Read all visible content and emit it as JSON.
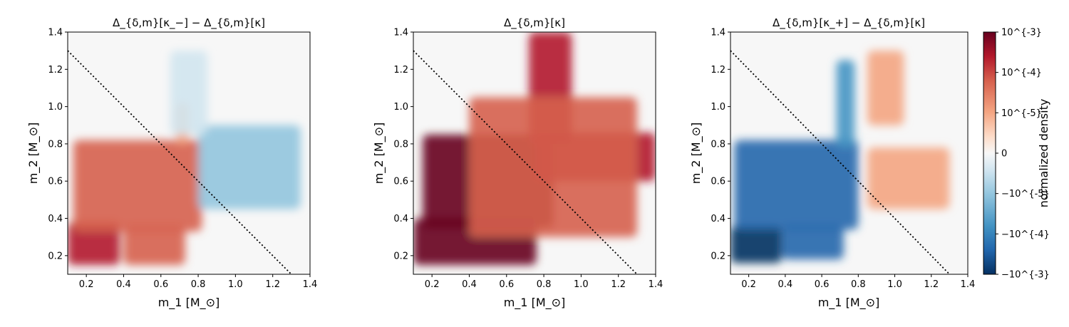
{
  "chart_data": [
    {
      "type": "heatmap",
      "title": "Δ_{δ,m}[κ_−] − Δ_{δ,m}[κ]",
      "xlabel": "m_1 [M_⊙]",
      "ylabel": "m_2 [M_⊙]",
      "xlim": [
        0.1,
        1.4
      ],
      "ylim": [
        0.1,
        1.4
      ],
      "xticks": [
        "0.2",
        "0.4",
        "0.6",
        "0.8",
        "1.0",
        "1.2",
        "1.4"
      ],
      "yticks": [
        "0.2",
        "0.4",
        "0.6",
        "0.8",
        "1.0",
        "1.2",
        "1.4"
      ],
      "reference_line": {
        "style": "dotted",
        "from": [
          0.1,
          1.3
        ],
        "to": [
          1.3,
          0.1
        ]
      },
      "regions": [
        {
          "x": [
            0.1,
            0.38
          ],
          "y": [
            0.15,
            0.38
          ],
          "sign": "positive",
          "level": 0.85
        },
        {
          "x": [
            0.4,
            0.73
          ],
          "y": [
            0.15,
            0.36
          ],
          "sign": "positive",
          "level": 0.6
        },
        {
          "x": [
            0.13,
            0.82
          ],
          "y": [
            0.33,
            0.82
          ],
          "sign": "positive",
          "level": 0.6
        },
        {
          "x": [
            0.68,
            0.75
          ],
          "y": [
            0.8,
            1.02
          ],
          "sign": "positive",
          "level": 0.3
        },
        {
          "x": [
            0.8,
            1.35
          ],
          "y": [
            0.45,
            0.9
          ],
          "sign": "negative",
          "level": 0.2
        },
        {
          "x": [
            0.65,
            0.85
          ],
          "y": [
            0.85,
            1.3
          ],
          "sign": "negative",
          "level": 0.12
        }
      ]
    },
    {
      "type": "heatmap",
      "title": "Δ_{δ,m}[κ]",
      "xlabel": "m_1 [M_⊙]",
      "ylabel": "m_2 [M_⊙]",
      "xlim": [
        0.1,
        1.4
      ],
      "ylim": [
        0.1,
        1.4
      ],
      "xticks": [
        "0.2",
        "0.4",
        "0.6",
        "0.8",
        "1.0",
        "1.2",
        "1.4"
      ],
      "yticks": [
        "0.2",
        "0.4",
        "0.6",
        "0.8",
        "1.0",
        "1.2",
        "1.4"
      ],
      "reference_line": {
        "style": "dotted",
        "from": [
          0.1,
          1.3
        ],
        "to": [
          1.3,
          0.1
        ]
      },
      "regions": [
        {
          "x": [
            0.1,
            0.76
          ],
          "y": [
            0.15,
            0.4
          ],
          "sign": "positive",
          "level": 1.0
        },
        {
          "x": [
            0.15,
            0.85
          ],
          "y": [
            0.35,
            0.85
          ],
          "sign": "positive",
          "level": 0.95
        },
        {
          "x": [
            0.75,
            1.4
          ],
          "y": [
            0.6,
            0.86
          ],
          "sign": "positive",
          "level": 0.8
        },
        {
          "x": [
            0.72,
            0.95
          ],
          "y": [
            0.8,
            1.4
          ],
          "sign": "positive",
          "level": 0.8
        },
        {
          "x": [
            0.4,
            1.3
          ],
          "y": [
            0.3,
            1.05
          ],
          "sign": "positive",
          "level": 0.45
        }
      ]
    },
    {
      "type": "heatmap",
      "title": "Δ_{δ,m}[κ_+] − Δ_{δ,m}[κ]",
      "xlabel": "m_1 [M_⊙]",
      "ylabel": "m_2 [M_⊙]",
      "xlim": [
        0.1,
        1.4
      ],
      "ylim": [
        0.1,
        1.4
      ],
      "xticks": [
        "0.2",
        "0.4",
        "0.6",
        "0.8",
        "1.0",
        "1.2",
        "1.4"
      ],
      "yticks": [
        "0.2",
        "0.4",
        "0.6",
        "0.8",
        "1.0",
        "1.2",
        "1.4"
      ],
      "reference_line": {
        "style": "dotted",
        "from": [
          0.1,
          1.3
        ],
        "to": [
          1.3,
          0.1
        ]
      },
      "regions": [
        {
          "x": [
            0.1,
            0.38
          ],
          "y": [
            0.16,
            0.36
          ],
          "sign": "negative",
          "level": 1.0
        },
        {
          "x": [
            0.38,
            0.72
          ],
          "y": [
            0.18,
            0.36
          ],
          "sign": "negative",
          "level": 0.65
        },
        {
          "x": [
            0.12,
            0.8
          ],
          "y": [
            0.34,
            0.82
          ],
          "sign": "negative",
          "level": 0.7
        },
        {
          "x": [
            0.68,
            0.78
          ],
          "y": [
            0.78,
            1.25
          ],
          "sign": "negative",
          "level": 0.5
        },
        {
          "x": [
            0.85,
            1.3
          ],
          "y": [
            0.45,
            0.78
          ],
          "sign": "positive",
          "level": 0.2
        },
        {
          "x": [
            0.85,
            1.05
          ],
          "y": [
            0.9,
            1.3
          ],
          "sign": "positive",
          "level": 0.15
        }
      ]
    }
  ],
  "colorbar": {
    "label": "normalized density",
    "ticks": [
      "10^{-3}",
      "10^{-4}",
      "10^{-5}",
      "0",
      "−10^{-5}",
      "−10^{-4}",
      "−10^{-3}"
    ],
    "colors": [
      "#67001f",
      "#b2182b",
      "#d6604d",
      "#f4a582",
      "#fddbc7",
      "#f7f7f7",
      "#d1e5f0",
      "#92c5de",
      "#4393c3",
      "#2166ac",
      "#053061"
    ]
  }
}
